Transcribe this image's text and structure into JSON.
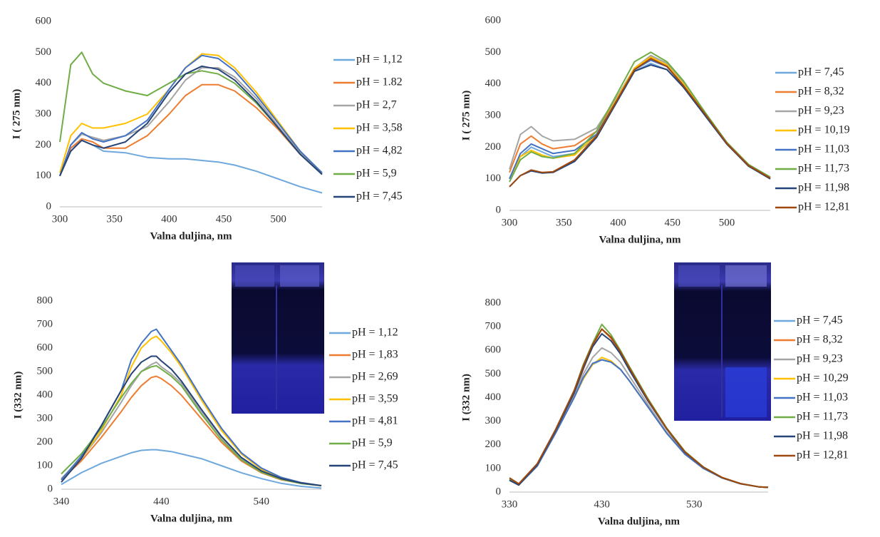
{
  "chart_data": [
    {
      "type": "line",
      "xlabel": "Valna duljina,  nm",
      "ylabel": "I ( 275 nm)",
      "xlim": [
        300,
        540
      ],
      "xticks": [
        300,
        350,
        400,
        450,
        500
      ],
      "ylim": [
        0,
        600
      ],
      "yticks": [
        0,
        100,
        200,
        300,
        400,
        500,
        600
      ],
      "x": [
        300,
        310,
        320,
        330,
        340,
        360,
        380,
        400,
        415,
        430,
        445,
        460,
        480,
        500,
        520,
        540
      ],
      "series": [
        {
          "name": "pH = 1,12",
          "color": "#6fa8dc",
          "values": [
            100,
            190,
            215,
            200,
            180,
            175,
            160,
            155,
            155,
            150,
            145,
            135,
            115,
            90,
            65,
            45
          ]
        },
        {
          "name": "pH = 1.82",
          "color": "#ed7d31",
          "values": [
            100,
            190,
            220,
            210,
            190,
            190,
            230,
            300,
            360,
            395,
            395,
            375,
            320,
            250,
            170,
            105
          ]
        },
        {
          "name": "pH = 2,7",
          "color": "#a5a5a5",
          "values": [
            100,
            200,
            235,
            225,
            215,
            230,
            260,
            340,
            410,
            450,
            450,
            420,
            350,
            260,
            175,
            110
          ]
        },
        {
          "name": "pH = 3,58",
          "color": "#ffc000",
          "values": [
            110,
            230,
            270,
            255,
            255,
            270,
            300,
            380,
            450,
            495,
            490,
            450,
            370,
            275,
            180,
            110
          ]
        },
        {
          "name": "pH = 4,82",
          "color": "#4472c4",
          "values": [
            100,
            200,
            240,
            220,
            210,
            230,
            280,
            380,
            450,
            490,
            480,
            440,
            360,
            270,
            180,
            110
          ]
        },
        {
          "name": "pH = 5,9",
          "color": "#70ad47",
          "values": [
            210,
            460,
            500,
            430,
            400,
            375,
            360,
            400,
            430,
            440,
            430,
            400,
            335,
            255,
            170,
            105
          ]
        },
        {
          "name": "pH = 7,45",
          "color": "#264478",
          "values": [
            100,
            180,
            215,
            200,
            190,
            210,
            270,
            370,
            430,
            455,
            445,
            410,
            340,
            255,
            170,
            105
          ]
        }
      ]
    },
    {
      "type": "line",
      "xlabel": "Valna duljina,  nm",
      "ylabel": "I ( 275 nm)",
      "xlim": [
        300,
        540
      ],
      "xticks": [
        300,
        350,
        400,
        450,
        500
      ],
      "ylim": [
        0,
        600
      ],
      "yticks": [
        0,
        100,
        200,
        300,
        400,
        500,
        600
      ],
      "x": [
        300,
        310,
        320,
        330,
        340,
        360,
        380,
        400,
        415,
        430,
        445,
        460,
        480,
        500,
        520,
        540
      ],
      "series": [
        {
          "name": "pH = 7,45",
          "color": "#6fa8dc",
          "values": [
            100,
            170,
            200,
            185,
            170,
            180,
            230,
            350,
            440,
            465,
            445,
            390,
            300,
            210,
            140,
            100
          ]
        },
        {
          "name": "pH = 8,32",
          "color": "#ed7d31",
          "values": [
            120,
            210,
            235,
            210,
            195,
            205,
            250,
            360,
            445,
            480,
            460,
            400,
            305,
            215,
            145,
            105
          ]
        },
        {
          "name": "pH = 9,23",
          "color": "#a5a5a5",
          "values": [
            130,
            240,
            265,
            235,
            220,
            225,
            260,
            365,
            450,
            490,
            465,
            405,
            310,
            215,
            145,
            105
          ]
        },
        {
          "name": "pH = 10,19",
          "color": "#ffc000",
          "values": [
            100,
            170,
            190,
            175,
            165,
            175,
            240,
            360,
            450,
            485,
            460,
            400,
            305,
            210,
            140,
            100
          ]
        },
        {
          "name": "pH = 11,03",
          "color": "#4472c4",
          "values": [
            100,
            180,
            210,
            195,
            180,
            190,
            240,
            355,
            445,
            475,
            455,
            395,
            300,
            210,
            140,
            100
          ]
        },
        {
          "name": "pH = 11,73",
          "color": "#70ad47",
          "values": [
            90,
            160,
            185,
            170,
            165,
            180,
            250,
            375,
            470,
            500,
            470,
            410,
            310,
            215,
            145,
            105
          ]
        },
        {
          "name": "pH = 11,98",
          "color": "#264478",
          "values": [
            75,
            110,
            125,
            118,
            120,
            155,
            230,
            350,
            440,
            460,
            445,
            390,
            300,
            210,
            140,
            100
          ]
        },
        {
          "name": "pH = 12,81",
          "color": "#9e480e",
          "values": [
            75,
            110,
            128,
            120,
            122,
            160,
            235,
            355,
            445,
            480,
            455,
            395,
            305,
            212,
            142,
            102
          ]
        }
      ]
    },
    {
      "type": "line",
      "xlabel": "Valna duljina,  nm",
      "ylabel": "I (332 nm)",
      "xlim": [
        340,
        600
      ],
      "xticks": [
        340,
        440,
        540
      ],
      "ylim": [
        0,
        800
      ],
      "yticks": [
        0,
        100,
        200,
        300,
        400,
        500,
        600,
        700,
        800
      ],
      "x": [
        340,
        360,
        380,
        400,
        410,
        420,
        430,
        435,
        440,
        450,
        460,
        480,
        500,
        520,
        540,
        560,
        580,
        600
      ],
      "series": [
        {
          "name": "pH = 1,12",
          "color": "#6fa8dc",
          "values": [
            20,
            70,
            110,
            140,
            155,
            165,
            168,
            168,
            165,
            160,
            150,
            130,
            100,
            70,
            45,
            25,
            12,
            5
          ]
        },
        {
          "name": "pH = 1,83",
          "color": "#ed7d31",
          "values": [
            40,
            120,
            220,
            330,
            390,
            440,
            475,
            480,
            470,
            440,
            400,
            300,
            200,
            120,
            70,
            40,
            25,
            15
          ]
        },
        {
          "name": "pH = 2,69",
          "color": "#a5a5a5",
          "values": [
            45,
            130,
            240,
            370,
            440,
            500,
            530,
            540,
            520,
            490,
            450,
            330,
            220,
            130,
            75,
            45,
            25,
            15
          ]
        },
        {
          "name": "pH = 3,59",
          "color": "#ffc000",
          "values": [
            40,
            130,
            250,
            400,
            520,
            600,
            640,
            650,
            630,
            580,
            520,
            380,
            250,
            150,
            85,
            50,
            28,
            15
          ]
        },
        {
          "name": "pH = 4,81",
          "color": "#4472c4",
          "values": [
            40,
            140,
            270,
            420,
            550,
            620,
            670,
            680,
            650,
            590,
            530,
            390,
            260,
            155,
            90,
            50,
            28,
            15
          ]
        },
        {
          "name": "pH = 5,9",
          "color": "#70ad47",
          "values": [
            65,
            150,
            260,
            390,
            450,
            500,
            520,
            525,
            510,
            480,
            440,
            320,
            210,
            125,
            72,
            42,
            24,
            15
          ]
        },
        {
          "name": "pH = 7,45",
          "color": "#264478",
          "values": [
            30,
            130,
            270,
            420,
            490,
            540,
            565,
            565,
            545,
            510,
            460,
            340,
            225,
            135,
            78,
            45,
            26,
            15
          ]
        }
      ]
    },
    {
      "type": "line",
      "xlabel": "Valna duljina,  nm",
      "ylabel": "I (332 nm)",
      "xlim": [
        330,
        610
      ],
      "xticks": [
        330,
        430,
        530
      ],
      "ylim": [
        0,
        800
      ],
      "yticks": [
        0,
        100,
        200,
        300,
        400,
        500,
        600,
        700,
        800
      ],
      "x": [
        330,
        340,
        360,
        380,
        400,
        410,
        420,
        430,
        440,
        450,
        460,
        480,
        500,
        520,
        540,
        560,
        580,
        600,
        610
      ],
      "series": [
        {
          "name": "pH = 7,45",
          "color": "#6fa8dc",
          "values": [
            50,
            30,
            110,
            250,
            400,
            480,
            540,
            560,
            550,
            520,
            470,
            360,
            250,
            160,
            100,
            60,
            35,
            22,
            20
          ]
        },
        {
          "name": "pH = 8,32",
          "color": "#ed7d31",
          "values": [
            50,
            30,
            115,
            260,
            420,
            520,
            620,
            690,
            650,
            590,
            520,
            390,
            270,
            170,
            105,
            62,
            36,
            22,
            20
          ]
        },
        {
          "name": "pH = 9,23",
          "color": "#a5a5a5",
          "values": [
            50,
            30,
            112,
            255,
            410,
            500,
            570,
            610,
            590,
            550,
            490,
            370,
            255,
            165,
            102,
            60,
            35,
            22,
            20
          ]
        },
        {
          "name": "pH = 10,29",
          "color": "#ffc000",
          "values": [
            50,
            30,
            110,
            250,
            400,
            480,
            540,
            570,
            555,
            520,
            470,
            360,
            250,
            160,
            100,
            60,
            35,
            22,
            20
          ]
        },
        {
          "name": "pH = 11,03",
          "color": "#4472c4",
          "values": [
            50,
            30,
            110,
            250,
            400,
            485,
            545,
            560,
            550,
            520,
            470,
            360,
            250,
            160,
            100,
            60,
            35,
            22,
            20
          ]
        },
        {
          "name": "pH = 11,73",
          "color": "#70ad47",
          "values": [
            55,
            30,
            118,
            265,
            430,
            540,
            630,
            710,
            665,
            600,
            530,
            395,
            272,
            172,
            106,
            62,
            36,
            22,
            20
          ]
        },
        {
          "name": "pH = 11,98",
          "color": "#264478",
          "values": [
            50,
            30,
            115,
            260,
            420,
            525,
            615,
            670,
            640,
            585,
            515,
            385,
            268,
            168,
            104,
            61,
            36,
            22,
            20
          ]
        },
        {
          "name": "pH = 12,81",
          "color": "#9e480e",
          "values": [
            60,
            35,
            120,
            265,
            430,
            535,
            625,
            690,
            655,
            595,
            525,
            390,
            270,
            170,
            105,
            62,
            36,
            22,
            20
          ]
        }
      ]
    }
  ]
}
